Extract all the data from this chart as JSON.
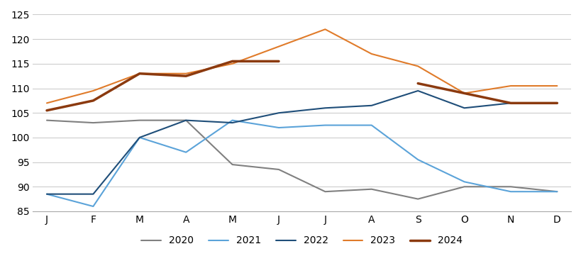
{
  "months": [
    "J",
    "F",
    "M",
    "A",
    "M",
    "J",
    "J",
    "A",
    "S",
    "O",
    "N",
    "D"
  ],
  "series": {
    "2020": [
      103.5,
      103.0,
      103.5,
      103.5,
      94.5,
      93.5,
      89.0,
      89.5,
      87.5,
      90.0,
      90.0,
      89.0
    ],
    "2021": [
      88.5,
      86.0,
      100.0,
      97.0,
      103.5,
      102.0,
      102.5,
      102.5,
      95.5,
      91.0,
      89.0,
      89.0
    ],
    "2022": [
      88.5,
      88.5,
      100.0,
      103.5,
      103.0,
      105.0,
      106.0,
      106.5,
      109.5,
      106.0,
      107.0,
      107.0
    ],
    "2023": [
      107.0,
      109.5,
      113.0,
      113.0,
      115.0,
      118.5,
      122.0,
      117.0,
      114.5,
      109.0,
      110.5,
      110.5
    ],
    "2024": [
      105.5,
      107.5,
      113.0,
      112.5,
      115.5,
      115.5,
      null,
      null,
      111.0,
      109.0,
      107.0,
      107.0
    ]
  },
  "colors": {
    "2020": "#808080",
    "2021": "#5ba3d9",
    "2022": "#1f4e79",
    "2023": "#e07b2a",
    "2024": "#8b3a0f"
  },
  "linewidths": {
    "2020": 1.5,
    "2021": 1.5,
    "2022": 1.5,
    "2023": 1.5,
    "2024": 2.5
  },
  "ylim": [
    85,
    125
  ],
  "yticks": [
    85,
    90,
    95,
    100,
    105,
    110,
    115,
    120,
    125
  ],
  "background_color": "#ffffff",
  "grid_color": "#cccccc"
}
